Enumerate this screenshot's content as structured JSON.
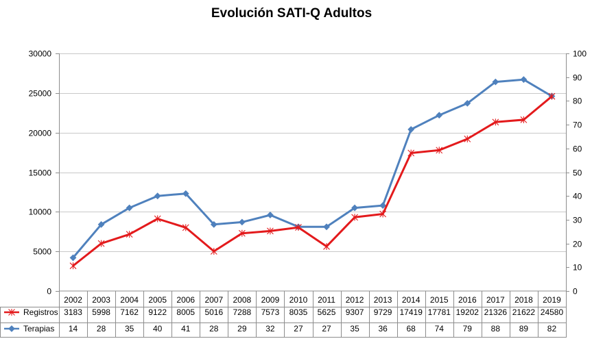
{
  "chart_data": {
    "type": "line",
    "title": "Evolución SATI-Q  Adultos",
    "categories": [
      "2002",
      "2003",
      "2004",
      "2005",
      "2006",
      "2007",
      "2008",
      "2009",
      "2010",
      "2011",
      "2012",
      "2013",
      "2014",
      "2015",
      "2016",
      "2017",
      "2018",
      "2019"
    ],
    "y_left": {
      "ticks": [
        0,
        5000,
        10000,
        15000,
        20000,
        25000,
        30000
      ],
      "ylim": [
        0,
        30000
      ]
    },
    "y_right": {
      "ticks": [
        0,
        10,
        20,
        30,
        40,
        50,
        60,
        70,
        80,
        90,
        100
      ],
      "ylim": [
        0,
        100
      ]
    },
    "grid": "horizontal",
    "legend": "data-table",
    "series": [
      {
        "name": "Registros",
        "axis": "left",
        "color": "#e31a1c",
        "marker": "asterisk",
        "values": [
          3183,
          5998,
          7162,
          9122,
          8005,
          5016,
          7288,
          7573,
          8035,
          5625,
          9307,
          9729,
          17419,
          17781,
          19202,
          21326,
          21622,
          24580
        ]
      },
      {
        "name": "Terapias",
        "axis": "right",
        "color": "#4f81bd",
        "marker": "diamond",
        "values": [
          14,
          28,
          35,
          40,
          41,
          28,
          29,
          32,
          27,
          27,
          35,
          36,
          68,
          74,
          79,
          88,
          89,
          82
        ]
      }
    ]
  }
}
